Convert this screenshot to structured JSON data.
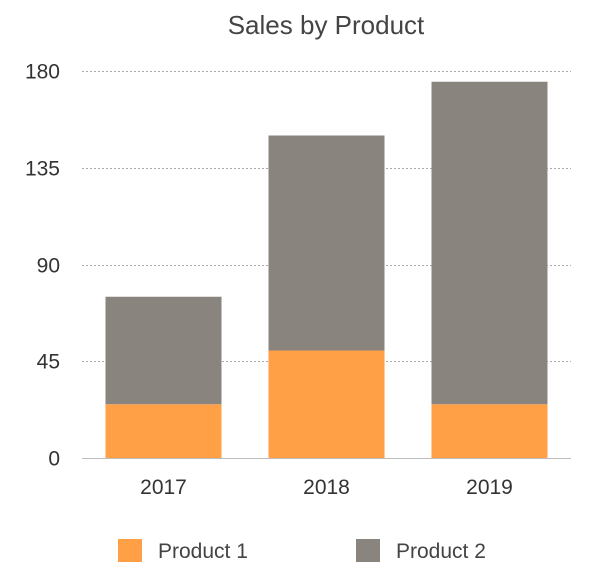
{
  "chart_data": {
    "type": "bar",
    "stacked": true,
    "title": "Sales by Product",
    "xlabel": "",
    "ylabel": "",
    "categories": [
      "2017",
      "2018",
      "2019"
    ],
    "series": [
      {
        "name": "Product 1",
        "values": [
          25,
          50,
          25
        ],
        "color": "#FF9F46"
      },
      {
        "name": "Product 2",
        "values": [
          50,
          100,
          150
        ],
        "color": "#8A847F"
      }
    ],
    "ylim": [
      0,
      180
    ],
    "yticks": [
      "0",
      "45",
      "90",
      "135",
      "180"
    ],
    "grid": true,
    "legend_position": "bottom"
  }
}
